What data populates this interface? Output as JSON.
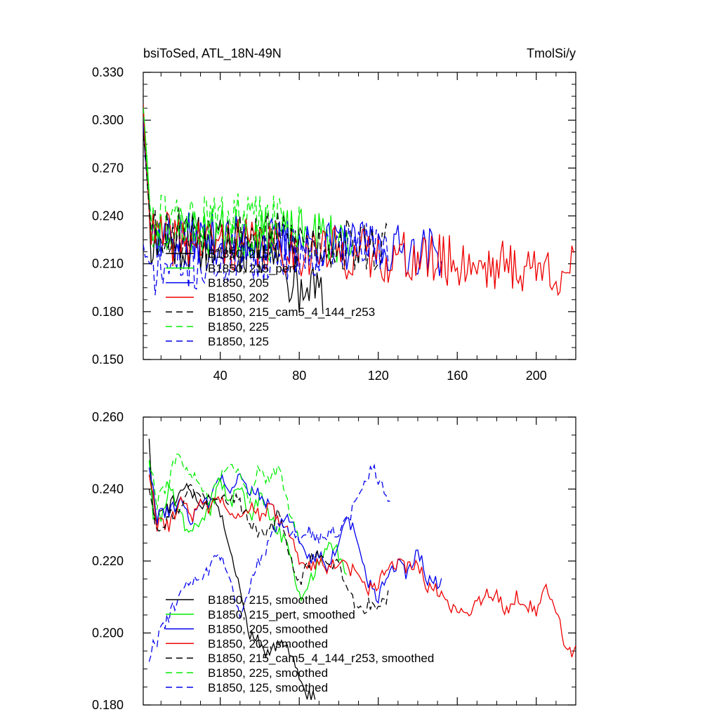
{
  "chart_data": [
    {
      "type": "line",
      "title": "bsiToSed, ATL_18N-49N",
      "units": "TmolSi/y",
      "xlim": [
        1,
        220
      ],
      "ylim": [
        0.15,
        0.33
      ],
      "xticks": [
        40,
        80,
        120,
        160,
        200
      ],
      "yticks": [
        0.15,
        0.18,
        0.21,
        0.24,
        0.27,
        0.3,
        0.33
      ],
      "ytick_labels": [
        "0.150",
        "0.180",
        "0.210",
        "0.240",
        "0.270",
        "0.300",
        "0.330"
      ],
      "series": [
        {
          "name": "B1850, 215",
          "color": "#000000",
          "dash": "solid",
          "length": 92,
          "base": 0.224,
          "trend": -0.012,
          "noise": 0.018,
          "start": 0.3,
          "dip_start": 74,
          "dip_depth": 0.03,
          "seed": 11
        },
        {
          "name": "B1850, 215_pert",
          "color": "#00ee00",
          "dash": "solid",
          "length": 107,
          "base": 0.232,
          "trend": -0.012,
          "noise": 0.017,
          "start": 0.31,
          "seed": 23
        },
        {
          "name": "B1850, 205",
          "color": "#0000ee",
          "dash": "solid",
          "length": 152,
          "base": 0.228,
          "trend": -0.015,
          "noise": 0.016,
          "start": 0.3,
          "seed": 37
        },
        {
          "name": "B1850, 202",
          "color": "#ee0000",
          "dash": "solid",
          "length": 219,
          "base": 0.227,
          "trend": -0.022,
          "noise": 0.017,
          "start": 0.305,
          "seed": 41
        },
        {
          "name": "B1850, 215_cam5_4_144_r253",
          "color": "#000000",
          "dash": "dashed",
          "length": 125,
          "base": 0.232,
          "trend": -0.022,
          "noise": 0.018,
          "start": 0.295,
          "seed": 53
        },
        {
          "name": "B1850, 225",
          "color": "#00ee00",
          "dash": "dashed",
          "length": 80,
          "base": 0.236,
          "trend": 0.0,
          "noise": 0.019,
          "start": 0.305,
          "seed": 61
        },
        {
          "name": "B1850, 125",
          "color": "#0000ee",
          "dash": "dashed",
          "length": 126,
          "base": 0.205,
          "trend": 0.032,
          "noise": 0.016,
          "start": 0.22,
          "seed": 71
        }
      ]
    },
    {
      "type": "line",
      "title": "",
      "xlim": [
        1,
        220
      ],
      "ylim": [
        0.18,
        0.26
      ],
      "xticks": [
        40,
        80,
        120,
        160,
        200
      ],
      "yticks": [
        0.18,
        0.2,
        0.22,
        0.24,
        0.26
      ],
      "ytick_labels": [
        "0.180",
        "0.200",
        "0.220",
        "0.240",
        "0.260"
      ],
      "series": [
        {
          "name": "B1850, 215, smoothed",
          "color": "#000000",
          "dash": "solid",
          "start_x": 4,
          "length": 88,
          "keypoints": [
            [
              4,
              0.254
            ],
            [
              6,
              0.232
            ],
            [
              10,
              0.232
            ],
            [
              15,
              0.236
            ],
            [
              20,
              0.238
            ],
            [
              24,
              0.24
            ],
            [
              30,
              0.236
            ],
            [
              35,
              0.236
            ],
            [
              40,
              0.234
            ],
            [
              45,
              0.222
            ],
            [
              50,
              0.212
            ],
            [
              55,
              0.2
            ],
            [
              60,
              0.197
            ],
            [
              65,
              0.194
            ],
            [
              70,
              0.197
            ],
            [
              75,
              0.195
            ],
            [
              80,
              0.188
            ],
            [
              84,
              0.182
            ],
            [
              88,
              0.183
            ]
          ]
        },
        {
          "name": "B1850, 215_pert, smoothed",
          "color": "#00ee00",
          "dash": "solid",
          "start_x": 4,
          "length": 104,
          "keypoints": [
            [
              4,
              0.248
            ],
            [
              6,
              0.233
            ],
            [
              10,
              0.232
            ],
            [
              14,
              0.24
            ],
            [
              18,
              0.236
            ],
            [
              22,
              0.23
            ],
            [
              25,
              0.228
            ],
            [
              30,
              0.232
            ],
            [
              35,
              0.234
            ],
            [
              40,
              0.242
            ],
            [
              45,
              0.236
            ],
            [
              50,
              0.24
            ],
            [
              55,
              0.232
            ],
            [
              60,
              0.238
            ],
            [
              65,
              0.232
            ],
            [
              70,
              0.228
            ],
            [
              75,
              0.222
            ],
            [
              80,
              0.21
            ],
            [
              85,
              0.214
            ],
            [
              90,
              0.22
            ],
            [
              95,
              0.225
            ],
            [
              100,
              0.222
            ],
            [
              104,
              0.216
            ]
          ]
        },
        {
          "name": "B1850, 205, smoothed",
          "color": "#0000ee",
          "dash": "solid",
          "start_x": 4,
          "length": 148,
          "keypoints": [
            [
              4,
              0.246
            ],
            [
              8,
              0.232
            ],
            [
              14,
              0.234
            ],
            [
              20,
              0.236
            ],
            [
              25,
              0.23
            ],
            [
              30,
              0.238
            ],
            [
              35,
              0.236
            ],
            [
              40,
              0.244
            ],
            [
              45,
              0.238
            ],
            [
              50,
              0.244
            ],
            [
              55,
              0.24
            ],
            [
              60,
              0.238
            ],
            [
              65,
              0.236
            ],
            [
              70,
              0.23
            ],
            [
              75,
              0.232
            ],
            [
              80,
              0.226
            ],
            [
              85,
              0.22
            ],
            [
              90,
              0.222
            ],
            [
              95,
              0.218
            ],
            [
              100,
              0.226
            ],
            [
              105,
              0.232
            ],
            [
              110,
              0.224
            ],
            [
              115,
              0.214
            ],
            [
              120,
              0.21
            ],
            [
              125,
              0.216
            ],
            [
              130,
              0.22
            ],
            [
              135,
              0.216
            ],
            [
              140,
              0.224
            ],
            [
              145,
              0.214
            ],
            [
              152,
              0.214
            ]
          ]
        },
        {
          "name": "B1850, 202, smoothed",
          "color": "#ee0000",
          "dash": "solid",
          "start_x": 4,
          "length": 216,
          "keypoints": [
            [
              4,
              0.244
            ],
            [
              8,
              0.23
            ],
            [
              14,
              0.23
            ],
            [
              20,
              0.236
            ],
            [
              26,
              0.232
            ],
            [
              30,
              0.238
            ],
            [
              35,
              0.234
            ],
            [
              40,
              0.238
            ],
            [
              45,
              0.232
            ],
            [
              50,
              0.232
            ],
            [
              55,
              0.236
            ],
            [
              60,
              0.232
            ],
            [
              65,
              0.236
            ],
            [
              70,
              0.23
            ],
            [
              75,
              0.228
            ],
            [
              80,
              0.22
            ],
            [
              85,
              0.218
            ],
            [
              90,
              0.22
            ],
            [
              95,
              0.218
            ],
            [
              100,
              0.22
            ],
            [
              105,
              0.218
            ],
            [
              110,
              0.216
            ],
            [
              115,
              0.212
            ],
            [
              120,
              0.214
            ],
            [
              125,
              0.218
            ],
            [
              130,
              0.22
            ],
            [
              135,
              0.218
            ],
            [
              140,
              0.22
            ],
            [
              145,
              0.212
            ],
            [
              150,
              0.212
            ],
            [
              155,
              0.208
            ],
            [
              160,
              0.206
            ],
            [
              165,
              0.206
            ],
            [
              170,
              0.208
            ],
            [
              175,
              0.212
            ],
            [
              180,
              0.21
            ],
            [
              185,
              0.206
            ],
            [
              190,
              0.21
            ],
            [
              195,
              0.208
            ],
            [
              200,
              0.206
            ],
            [
              205,
              0.212
            ],
            [
              210,
              0.206
            ],
            [
              215,
              0.196
            ],
            [
              218,
              0.194
            ],
            [
              220,
              0.197
            ]
          ]
        },
        {
          "name": "B1850, 215_cam5_4_144_r253, smoothed",
          "color": "#000000",
          "dash": "dashed",
          "start_x": 4,
          "length": 121,
          "keypoints": [
            [
              4,
              0.24
            ],
            [
              8,
              0.228
            ],
            [
              14,
              0.232
            ],
            [
              20,
              0.236
            ],
            [
              25,
              0.24
            ],
            [
              30,
              0.238
            ],
            [
              35,
              0.236
            ],
            [
              40,
              0.236
            ],
            [
              45,
              0.238
            ],
            [
              50,
              0.236
            ],
            [
              55,
              0.23
            ],
            [
              60,
              0.228
            ],
            [
              65,
              0.228
            ],
            [
              70,
              0.234
            ],
            [
              75,
              0.222
            ],
            [
              80,
              0.214
            ],
            [
              85,
              0.22
            ],
            [
              90,
              0.222
            ],
            [
              95,
              0.218
            ],
            [
              100,
              0.22
            ],
            [
              105,
              0.212
            ],
            [
              110,
              0.206
            ],
            [
              115,
              0.208
            ],
            [
              120,
              0.206
            ],
            [
              125,
              0.21
            ]
          ]
        },
        {
          "name": "B1850, 225, smoothed",
          "color": "#00ee00",
          "dash": "dashed",
          "start_x": 4,
          "length": 76,
          "keypoints": [
            [
              4,
              0.248
            ],
            [
              8,
              0.236
            ],
            [
              14,
              0.242
            ],
            [
              18,
              0.25
            ],
            [
              22,
              0.244
            ],
            [
              26,
              0.244
            ],
            [
              30,
              0.242
            ],
            [
              35,
              0.236
            ],
            [
              40,
              0.244
            ],
            [
              45,
              0.246
            ],
            [
              50,
              0.244
            ],
            [
              55,
              0.238
            ],
            [
              60,
              0.246
            ],
            [
              65,
              0.242
            ],
            [
              70,
              0.246
            ],
            [
              72,
              0.24
            ],
            [
              76,
              0.232
            ],
            [
              80,
              0.226
            ]
          ]
        },
        {
          "name": "B1850, 125, smoothed",
          "color": "#0000ee",
          "dash": "dashed",
          "start_x": 4,
          "length": 122,
          "keypoints": [
            [
              4,
              0.192
            ],
            [
              6,
              0.196
            ],
            [
              10,
              0.2
            ],
            [
              15,
              0.206
            ],
            [
              20,
              0.21
            ],
            [
              25,
              0.214
            ],
            [
              30,
              0.216
            ],
            [
              35,
              0.218
            ],
            [
              40,
              0.222
            ],
            [
              45,
              0.214
            ],
            [
              50,
              0.204
            ],
            [
              55,
              0.214
            ],
            [
              60,
              0.22
            ],
            [
              65,
              0.226
            ],
            [
              70,
              0.23
            ],
            [
              75,
              0.228
            ],
            [
              80,
              0.226
            ],
            [
              85,
              0.228
            ],
            [
              90,
              0.226
            ],
            [
              95,
              0.228
            ],
            [
              100,
              0.228
            ],
            [
              105,
              0.232
            ],
            [
              110,
              0.238
            ],
            [
              115,
              0.244
            ],
            [
              118,
              0.246
            ],
            [
              122,
              0.24
            ],
            [
              126,
              0.236
            ]
          ]
        }
      ]
    }
  ]
}
